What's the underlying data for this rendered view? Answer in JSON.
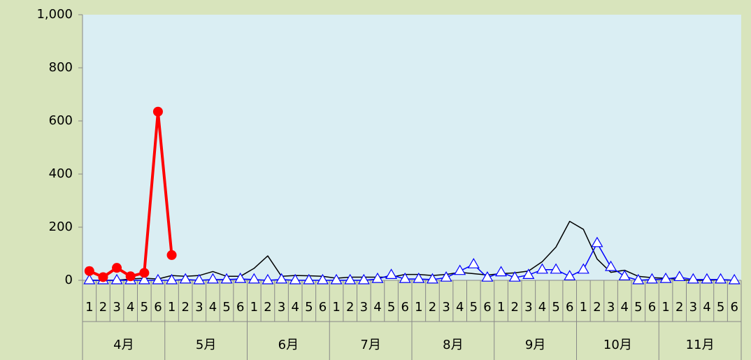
{
  "chart_data": {
    "type": "line",
    "categories": [
      "1",
      "2",
      "3",
      "4",
      "5",
      "6",
      "1",
      "2",
      "3",
      "4",
      "5",
      "6",
      "1",
      "2",
      "3",
      "4",
      "5",
      "6",
      "1",
      "2",
      "3",
      "4",
      "5",
      "6",
      "1",
      "2",
      "3",
      "4",
      "5",
      "6",
      "1",
      "2",
      "3",
      "4",
      "5",
      "6",
      "1",
      "2",
      "3",
      "4",
      "5",
      "6",
      "1",
      "2",
      "3",
      "4",
      "5",
      "6"
    ],
    "category_groups": [
      "4月",
      "5月",
      "6月",
      "7月",
      "8月",
      "9月",
      "10月",
      "11月"
    ],
    "ylim": [
      0,
      1000
    ],
    "yticks": [
      0,
      200,
      400,
      600,
      800,
      {
        "value": 1000,
        "label": "1,000"
      }
    ],
    "series": [
      {
        "color": "#000000",
        "marker": "none",
        "values": [
          0,
          0,
          0,
          5,
          8,
          5,
          18,
          15,
          18,
          33,
          15,
          15,
          45,
          92,
          15,
          18,
          17,
          15,
          8,
          12,
          12,
          12,
          12,
          22,
          22,
          18,
          22,
          30,
          25,
          20,
          25,
          28,
          35,
          70,
          125,
          222,
          192,
          80,
          30,
          38,
          15,
          10,
          8,
          3,
          0,
          0,
          3,
          0
        ]
      },
      {
        "color": "#0000ff",
        "marker": "triangle",
        "values": [
          0,
          0,
          0,
          0,
          0,
          0,
          0,
          3,
          0,
          3,
          3,
          5,
          3,
          0,
          3,
          0,
          0,
          0,
          0,
          0,
          0,
          5,
          20,
          5,
          5,
          3,
          10,
          35,
          60,
          10,
          30,
          10,
          20,
          40,
          40,
          15,
          40,
          140,
          50,
          15,
          0,
          3,
          5,
          12,
          3,
          3,
          3,
          0
        ]
      },
      {
        "color": "#ff0000",
        "marker": "circle",
        "values": [
          35,
          12,
          47,
          15,
          28,
          635,
          95,
          null,
          null,
          null,
          null,
          null,
          null,
          null,
          null,
          null,
          null,
          null,
          null,
          null,
          null,
          null,
          null,
          null,
          null,
          null,
          null,
          null,
          null,
          null,
          null,
          null,
          null,
          null,
          null,
          null,
          null,
          null,
          null,
          null,
          null,
          null,
          null,
          null,
          null,
          null,
          null,
          null
        ]
      }
    ]
  }
}
